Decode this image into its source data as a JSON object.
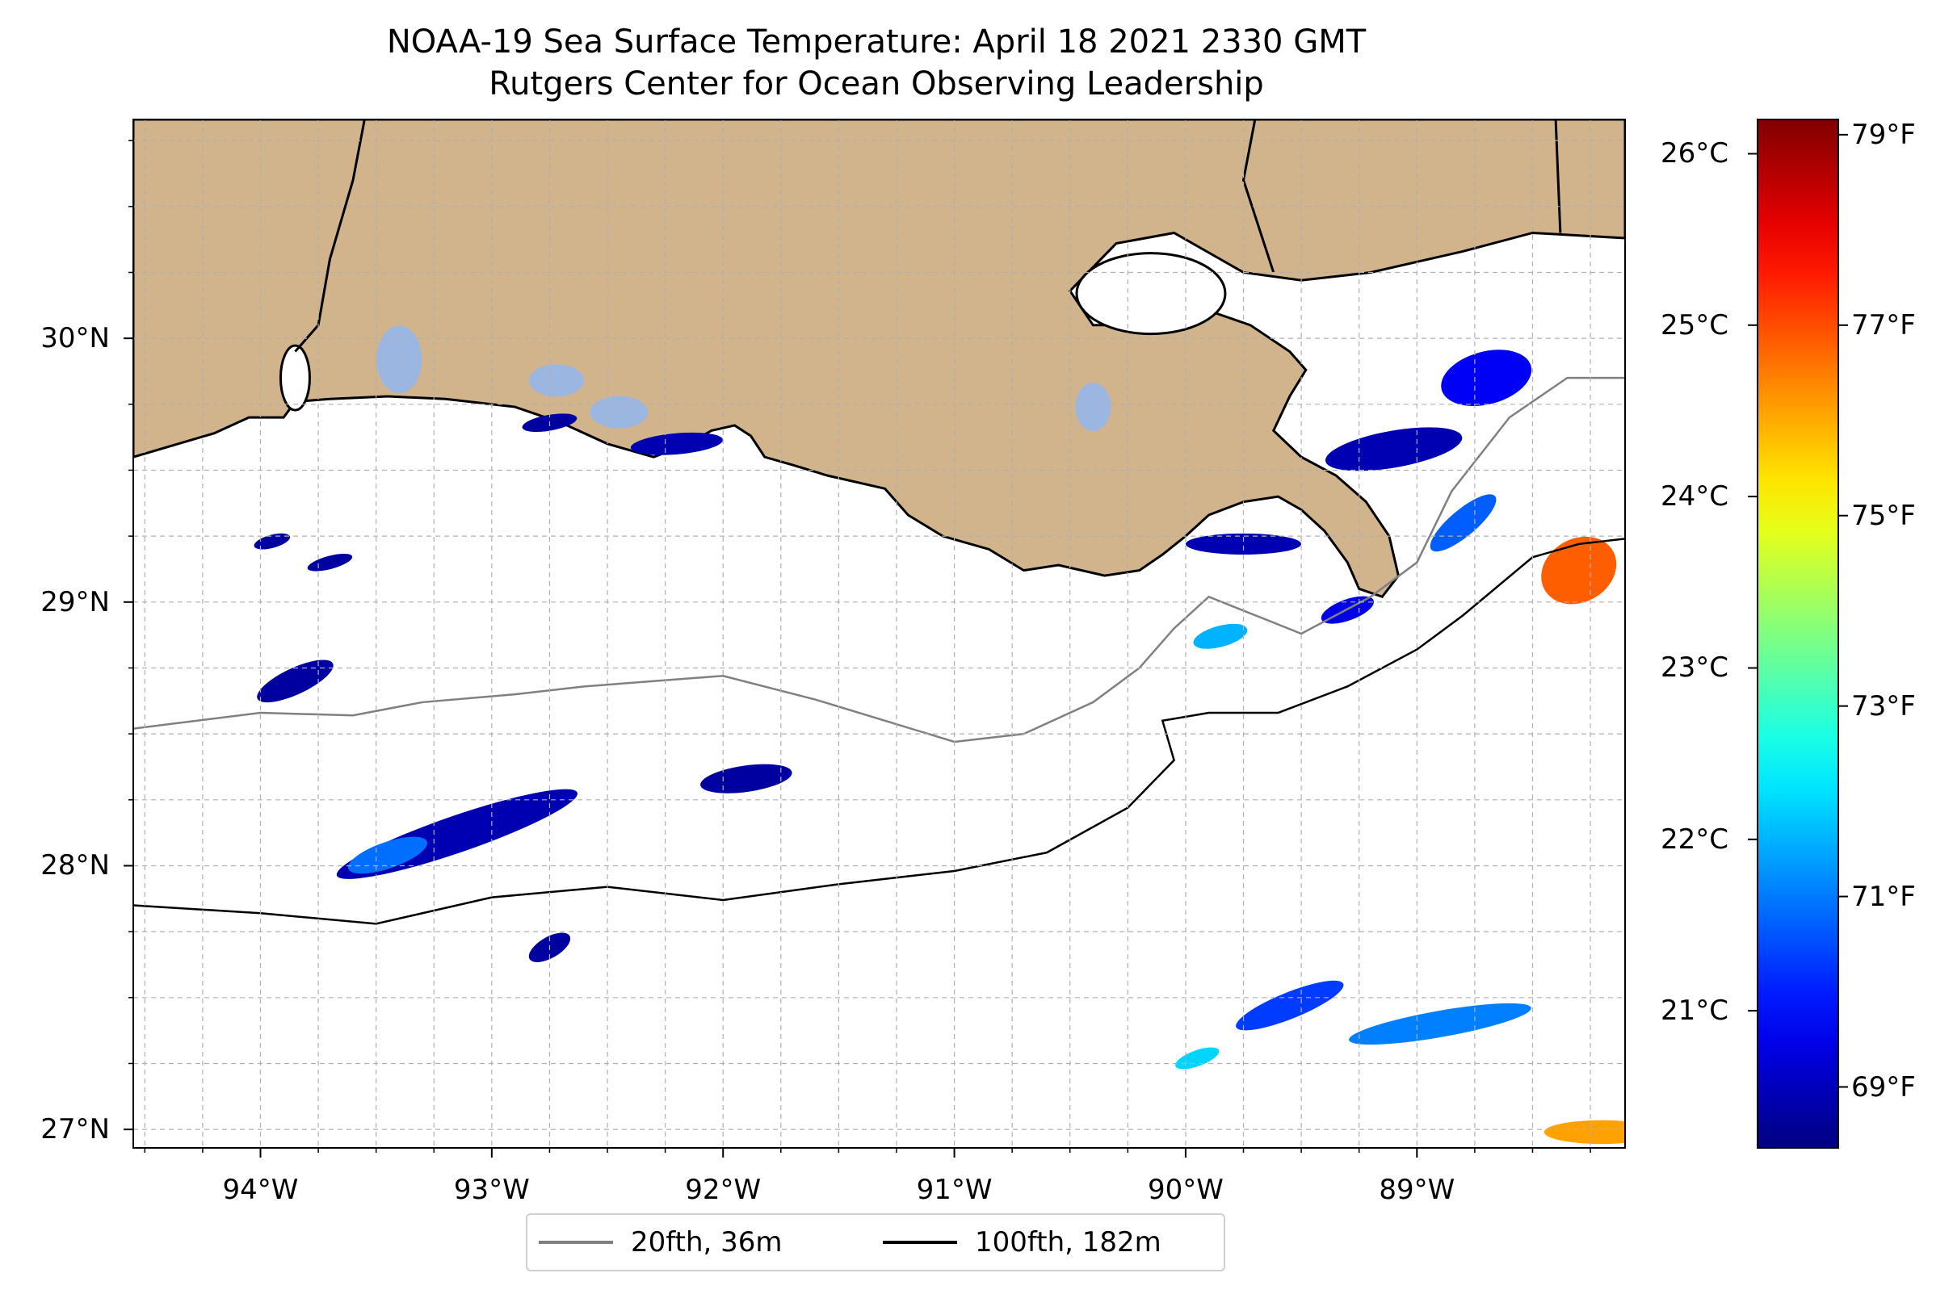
{
  "title": {
    "line1": "NOAA-19 Sea Surface Temperature: April 18 2021 2330 GMT",
    "line2": "Rutgers Center for Ocean Observing Leadership"
  },
  "map": {
    "lon_range": [
      -94.55,
      -88.1
    ],
    "lat_range": [
      26.93,
      30.83
    ],
    "lat_ticks": [
      {
        "value": 30,
        "label": "30°N"
      },
      {
        "value": 29,
        "label": "29°N"
      },
      {
        "value": 28,
        "label": "28°N"
      },
      {
        "value": 27,
        "label": "27°N"
      }
    ],
    "lon_ticks": [
      {
        "value": -94,
        "label": "94°W"
      },
      {
        "value": -93,
        "label": "93°W"
      },
      {
        "value": -92,
        "label": "92°W"
      },
      {
        "value": -91,
        "label": "91°W"
      },
      {
        "value": -90,
        "label": "90°W"
      },
      {
        "value": -89,
        "label": "89°W"
      }
    ],
    "gridlines": "dashed, every 0.25°",
    "colors": {
      "land": "#d2b48c",
      "ocean_nodata": "#ffffff",
      "lakes": "#9bb6e0",
      "coastline": "#000000",
      "grid": "#b0b0b0"
    }
  },
  "legend": {
    "items": [
      {
        "label": "20fth, 36m",
        "color": "#808080"
      },
      {
        "label": "100fth, 182m",
        "color": "#000000"
      }
    ],
    "placement": "bottom-center"
  },
  "colorbar": {
    "colormap": "jet",
    "range_c": [
      20.2,
      26.2
    ],
    "celsius_ticks": [
      {
        "value": 26,
        "label": "26°C"
      },
      {
        "value": 25,
        "label": "25°C"
      },
      {
        "value": 24,
        "label": "24°C"
      },
      {
        "value": 23,
        "label": "23°C"
      },
      {
        "value": 22,
        "label": "22°C"
      },
      {
        "value": 21,
        "label": "21°C"
      }
    ],
    "fahrenheit_ticks": [
      {
        "value": 79,
        "label": "79°F"
      },
      {
        "value": 77,
        "label": "77°F"
      },
      {
        "value": 75,
        "label": "75°F"
      },
      {
        "value": 73,
        "label": "73°F"
      },
      {
        "value": 71,
        "label": "71°F"
      },
      {
        "value": 69,
        "label": "69°F"
      }
    ]
  },
  "chart_data": {
    "type": "heatmap",
    "title": "NOAA-19 Sea Surface Temperature: April 18 2021 2330 GMT",
    "subtitle": "Rutgers Center for Ocean Observing Leadership",
    "xlim": [
      -94.55,
      -88.1
    ],
    "ylim": [
      26.93,
      30.83
    ],
    "value_unit": "°C",
    "value_range": [
      20.2,
      26.2
    ],
    "series": [
      {
        "name": "20fth, 36m",
        "color": "#808080",
        "points": [
          [
            -94.55,
            28.52
          ],
          [
            -94.0,
            28.58
          ],
          [
            -93.6,
            28.57
          ],
          [
            -93.3,
            28.62
          ],
          [
            -92.9,
            28.65
          ],
          [
            -92.6,
            28.68
          ],
          [
            -92.3,
            28.7
          ],
          [
            -92.0,
            28.72
          ],
          [
            -91.6,
            28.63
          ],
          [
            -91.3,
            28.55
          ],
          [
            -91.0,
            28.47
          ],
          [
            -90.7,
            28.5
          ],
          [
            -90.4,
            28.62
          ],
          [
            -90.2,
            28.75
          ],
          [
            -90.05,
            28.9
          ],
          [
            -89.9,
            29.02
          ],
          [
            -89.7,
            28.95
          ],
          [
            -89.5,
            28.88
          ],
          [
            -89.2,
            29.02
          ],
          [
            -89.0,
            29.15
          ],
          [
            -88.85,
            29.42
          ],
          [
            -88.6,
            29.7
          ],
          [
            -88.35,
            29.85
          ],
          [
            -88.1,
            29.85
          ]
        ]
      },
      {
        "name": "100fth, 182m",
        "color": "#000000",
        "points": [
          [
            -94.55,
            27.85
          ],
          [
            -94.0,
            27.82
          ],
          [
            -93.5,
            27.78
          ],
          [
            -93.0,
            27.88
          ],
          [
            -92.5,
            27.92
          ],
          [
            -92.0,
            27.87
          ],
          [
            -91.5,
            27.93
          ],
          [
            -91.0,
            27.98
          ],
          [
            -90.6,
            28.05
          ],
          [
            -90.25,
            28.22
          ],
          [
            -90.05,
            28.4
          ],
          [
            -90.1,
            28.55
          ],
          [
            -89.9,
            28.58
          ],
          [
            -89.6,
            28.58
          ],
          [
            -89.3,
            28.68
          ],
          [
            -89.0,
            28.82
          ],
          [
            -88.8,
            28.95
          ],
          [
            -88.5,
            29.17
          ],
          [
            -88.3,
            29.22
          ],
          [
            -88.1,
            29.24
          ]
        ]
      }
    ],
    "sst_patches": [
      {
        "lon": -93.15,
        "lat": 28.12,
        "rx": 0.55,
        "ry": 0.07,
        "rot": -19,
        "temp": 20.5
      },
      {
        "lon": -93.45,
        "lat": 28.04,
        "rx": 0.18,
        "ry": 0.05,
        "rot": -19,
        "temp": 21.6
      },
      {
        "lon": -93.85,
        "lat": 28.7,
        "rx": 0.18,
        "ry": 0.05,
        "rot": -25,
        "temp": 20.4
      },
      {
        "lon": -91.9,
        "lat": 28.33,
        "rx": 0.2,
        "ry": 0.05,
        "rot": -8,
        "temp": 20.4
      },
      {
        "lon": -92.75,
        "lat": 29.68,
        "rx": 0.12,
        "ry": 0.03,
        "rot": -10,
        "temp": 20.4
      },
      {
        "lon": -92.2,
        "lat": 29.6,
        "rx": 0.2,
        "ry": 0.04,
        "rot": -5,
        "temp": 20.5
      },
      {
        "lon": -93.95,
        "lat": 29.23,
        "rx": 0.08,
        "ry": 0.025,
        "rot": -15,
        "temp": 20.4
      },
      {
        "lon": -93.7,
        "lat": 29.15,
        "rx": 0.1,
        "ry": 0.025,
        "rot": -15,
        "temp": 20.4
      },
      {
        "lon": -92.75,
        "lat": 27.69,
        "rx": 0.1,
        "ry": 0.04,
        "rot": -30,
        "temp": 20.4
      },
      {
        "lon": -89.1,
        "lat": 29.58,
        "rx": 0.3,
        "ry": 0.07,
        "rot": -10,
        "temp": 20.5
      },
      {
        "lon": -88.7,
        "lat": 29.85,
        "rx": 0.2,
        "ry": 0.1,
        "rot": -15,
        "temp": 20.9
      },
      {
        "lon": -89.75,
        "lat": 29.22,
        "rx": 0.25,
        "ry": 0.04,
        "rot": 0,
        "temp": 20.5
      },
      {
        "lon": -89.85,
        "lat": 28.87,
        "rx": 0.12,
        "ry": 0.04,
        "rot": -15,
        "temp": 22.0
      },
      {
        "lon": -88.3,
        "lat": 29.12,
        "rx": 0.17,
        "ry": 0.12,
        "rot": -30,
        "temp": 24.9
      },
      {
        "lon": -88.8,
        "lat": 29.3,
        "rx": 0.18,
        "ry": 0.05,
        "rot": -40,
        "temp": 21.5
      },
      {
        "lon": -89.3,
        "lat": 28.97,
        "rx": 0.12,
        "ry": 0.04,
        "rot": -20,
        "temp": 20.8
      },
      {
        "lon": -89.55,
        "lat": 27.47,
        "rx": 0.25,
        "ry": 0.05,
        "rot": -22,
        "temp": 21.3
      },
      {
        "lon": -89.95,
        "lat": 27.27,
        "rx": 0.1,
        "ry": 0.03,
        "rot": -20,
        "temp": 22.2
      },
      {
        "lon": -88.9,
        "lat": 27.4,
        "rx": 0.4,
        "ry": 0.05,
        "rot": -10,
        "temp": 21.7
      },
      {
        "lon": -88.2,
        "lat": 26.99,
        "rx": 0.25,
        "ry": 0.045,
        "rot": 0,
        "temp": 24.5
      }
    ]
  }
}
